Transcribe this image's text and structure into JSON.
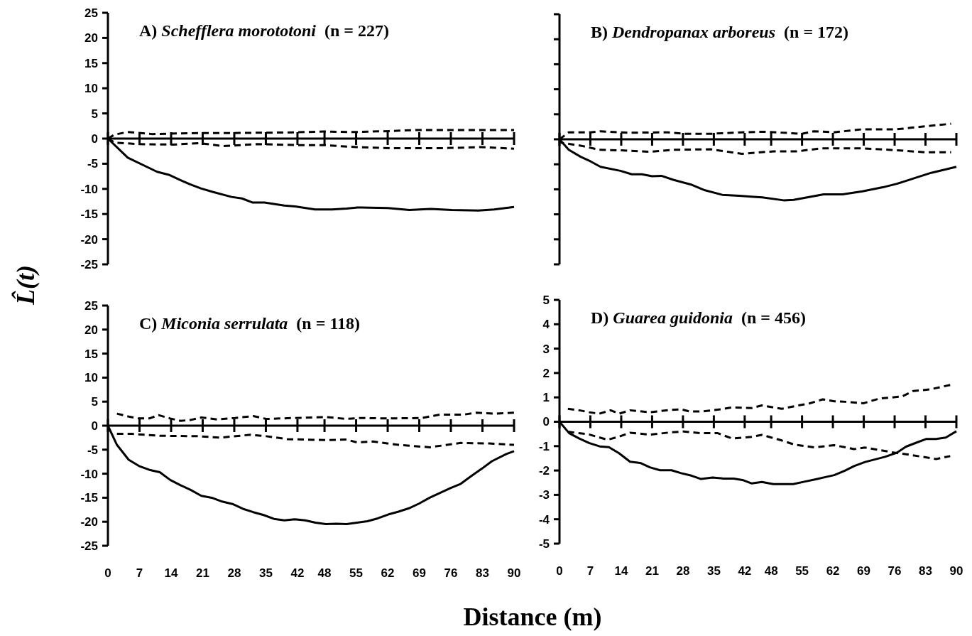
{
  "chart_data": [
    {
      "type": "line",
      "title": "A) Schefflera morototoni (n = 227)",
      "ylabel": "L̂(t)",
      "xlim": [
        0,
        90
      ],
      "ylim": [
        -25,
        25
      ],
      "yticks": [
        -25,
        -20,
        -15,
        -10,
        -5,
        0,
        5,
        10,
        15,
        20,
        25
      ],
      "xticks": [
        0,
        7,
        14,
        21,
        28,
        35,
        42,
        48,
        55,
        62,
        69,
        76,
        83,
        90
      ],
      "tick_labels": "y",
      "series": [
        {
          "type": "line",
          "line_style": "solid",
          "color": "#000000",
          "x": [
            0,
            4.4,
            10.9,
            13.5,
            16.2,
            18.2,
            20.6,
            23.2,
            27.4,
            29.7,
            32,
            34.7,
            39.1,
            41.5,
            45.9,
            49.7,
            52.9,
            55.3,
            62,
            66.8,
            71.5,
            76.2,
            82.1,
            85.6,
            90
          ],
          "values": [
            0,
            -3.8,
            -6.6,
            -7.2,
            -8.3,
            -9.1,
            -9.9,
            -10.6,
            -11.6,
            -11.9,
            -12.7,
            -12.7,
            -13.3,
            -13.5,
            -14.1,
            -14.1,
            -13.9,
            -13.7,
            -13.8,
            -14.2,
            -14,
            -14.2,
            -14.3,
            -14.1,
            -13.6
          ]
        },
        {
          "type": "line",
          "line_style": "dashed",
          "color": "#000000",
          "x": [
            0,
            1.5,
            4.4,
            9.7,
            20,
            27,
            39,
            48,
            54.4,
            62.6,
            68.5,
            80,
            90
          ],
          "values": [
            0,
            0.8,
            1.3,
            0.9,
            1.1,
            1.1,
            1.2,
            1.4,
            1.3,
            1.5,
            1.7,
            1.7,
            1.7
          ]
        },
        {
          "type": "line",
          "line_style": "dashed",
          "color": "#000000",
          "x": [
            0,
            1.5,
            6.8,
            14.4,
            20.3,
            25.6,
            33,
            42,
            48,
            55,
            62.6,
            74.4,
            82.6,
            90
          ],
          "values": [
            0,
            -0.8,
            -1.1,
            -1.2,
            -0.9,
            -1.5,
            -1.1,
            -1.3,
            -1.3,
            -1.7,
            -1.9,
            -1.9,
            -1.7,
            -2
          ]
        }
      ]
    },
    {
      "type": "line",
      "title": "B) Dendropanax arboreus (n = 172)",
      "xlim": [
        0,
        90
      ],
      "ylim": [
        -25,
        25
      ],
      "yticks": [
        -25,
        -20,
        -15,
        -10,
        -5,
        0,
        5,
        10,
        15,
        20,
        25
      ],
      "xticks": [
        0,
        7,
        14,
        21,
        28,
        35,
        42,
        48,
        55,
        62,
        69,
        76,
        83,
        90
      ],
      "tick_labels": false,
      "series": [
        {
          "type": "line",
          "line_style": "solid",
          "color": "#000000",
          "x": [
            0,
            2.1,
            4.8,
            7,
            9.3,
            13.8,
            16.4,
            18.7,
            21,
            23.1,
            25.8,
            30,
            33,
            36.9,
            40.8,
            44,
            46,
            50.8,
            53.1,
            59.9,
            64.2,
            68.7,
            73.3,
            76.5,
            80.4,
            84.3,
            90
          ],
          "values": [
            0,
            -2.1,
            -3.5,
            -4.4,
            -5.5,
            -6.3,
            -7,
            -7,
            -7.4,
            -7.3,
            -8.1,
            -9.1,
            -10.2,
            -11.1,
            -11.3,
            -11.5,
            -11.6,
            -12.2,
            -12.1,
            -11,
            -11,
            -10.4,
            -9.6,
            -8.9,
            -7.8,
            -6.7,
            -5.5
          ]
        },
        {
          "type": "line",
          "line_style": "dashed",
          "color": "#000000",
          "x": [
            0,
            2.1,
            7,
            9.3,
            16,
            24.5,
            28.4,
            34.3,
            41.4,
            46.6,
            55,
            57.7,
            62.2,
            68.7,
            76.5,
            83,
            88.8
          ],
          "values": [
            0,
            1.4,
            1.4,
            1.6,
            1.3,
            1.4,
            1.1,
            1.1,
            1.4,
            1.5,
            1.1,
            1.6,
            1.4,
            2,
            2,
            2.6,
            3.1
          ]
        },
        {
          "type": "line",
          "line_style": "dashed",
          "color": "#000000",
          "x": [
            0,
            0.5,
            5,
            9,
            13.5,
            20.6,
            25.8,
            34.3,
            41.4,
            48.6,
            53.8,
            59.6,
            68.7,
            76.5,
            83,
            88.8
          ],
          "values": [
            0,
            -0.7,
            -1.3,
            -2.1,
            -2.2,
            -2.5,
            -2.1,
            -2,
            -2.9,
            -2.4,
            -2.4,
            -1.8,
            -1.8,
            -2.2,
            -2.6,
            -2.6
          ]
        }
      ]
    },
    {
      "type": "line",
      "title": "C) Miconia serrulata (n = 118)",
      "xlabel": "Distance (m)",
      "xlim": [
        0,
        90
      ],
      "ylim": [
        -25,
        25
      ],
      "yticks": [
        -25,
        -20,
        -15,
        -10,
        -5,
        0,
        5,
        10,
        15,
        20,
        25
      ],
      "xticks": [
        0,
        7,
        14,
        21,
        28,
        35,
        42,
        48,
        55,
        62,
        69,
        76,
        83,
        90
      ],
      "series": [
        {
          "type": "line",
          "line_style": "solid",
          "color": "#000000",
          "x": [
            0,
            2,
            4.6,
            6.9,
            9.2,
            11.5,
            13.8,
            16.1,
            18.4,
            20.7,
            23,
            25.3,
            27.6,
            29.9,
            32.2,
            34.5,
            36.8,
            39.1,
            41.4,
            43.7,
            46,
            48.3,
            50.6,
            52.9,
            55.2,
            57.5,
            59.8,
            62.1,
            64.4,
            66.7,
            69,
            71.3,
            73.6,
            75.9,
            78.2,
            80.5,
            82.8,
            85.1,
            88.3,
            90
          ],
          "values": [
            0,
            -4,
            -7.1,
            -8.4,
            -9.2,
            -9.7,
            -11.3,
            -12.4,
            -13.4,
            -14.6,
            -15,
            -15.8,
            -16.3,
            -17.3,
            -18,
            -18.6,
            -19.4,
            -19.7,
            -19.5,
            -19.7,
            -20.2,
            -20.5,
            -20.4,
            -20.5,
            -20.2,
            -19.9,
            -19.3,
            -18.5,
            -17.9,
            -17.2,
            -16.2,
            -15,
            -14,
            -13,
            -12.1,
            -10.5,
            -9,
            -7.4,
            -5.9,
            -5.3
          ]
        },
        {
          "type": "line",
          "line_style": "dashed",
          "color": "#000000",
          "x": [
            2,
            4.6,
            6.9,
            9.2,
            11.2,
            13.8,
            16.1,
            18.4,
            20.7,
            24.2,
            28.2,
            32.2,
            35.1,
            41.4,
            48.3,
            52.9,
            55.8,
            62.1,
            69.6,
            73.6,
            78.8,
            81.7,
            85.7,
            90
          ],
          "values": [
            2.5,
            1.9,
            1.5,
            1.5,
            2.2,
            1.5,
            1,
            1.2,
            1.7,
            1.3,
            1.6,
            2,
            1.4,
            1.6,
            1.8,
            1.4,
            1.6,
            1.5,
            1.6,
            2.3,
            2.3,
            2.7,
            2.5,
            2.7
          ]
        },
        {
          "type": "line",
          "line_style": "dashed",
          "color": "#000000",
          "x": [
            2,
            5.2,
            11.5,
            20.1,
            24.7,
            31.6,
            35.1,
            39.7,
            48.3,
            52.9,
            55.2,
            58.7,
            64.4,
            71.3,
            78.2,
            84.5,
            90
          ],
          "values": [
            -1.7,
            -1.7,
            -2.1,
            -2.2,
            -2.5,
            -1.9,
            -2.2,
            -2.8,
            -3,
            -2.9,
            -3.5,
            -3.3,
            -4,
            -4.5,
            -3.6,
            -3.7,
            -4
          ]
        }
      ]
    },
    {
      "type": "line",
      "title": "D) Guarea guidonia (n = 456)",
      "xlim": [
        0,
        90
      ],
      "ylim": [
        -5,
        5
      ],
      "yticks": [
        -5,
        -4,
        -3,
        -2,
        -1,
        0,
        1,
        2,
        3,
        4,
        5
      ],
      "xticks": [
        0,
        7,
        14,
        21,
        28,
        35,
        42,
        48,
        55,
        62,
        69,
        76,
        83,
        90
      ],
      "series": [
        {
          "type": "line",
          "line_style": "solid",
          "color": "#000000",
          "x": [
            0,
            2.2,
            4.5,
            6.7,
            9.1,
            11.2,
            13.5,
            16,
            18.3,
            20.5,
            22.8,
            25.4,
            27.6,
            29.9,
            32.1,
            34.7,
            37.2,
            39.5,
            41.7,
            43.6,
            45.9,
            48.5,
            53,
            55.5,
            58.1,
            60.3,
            62.3,
            64.8,
            66.8,
            69.3,
            73.8,
            76.4,
            78.6,
            80.9,
            83.1,
            85.4,
            87.6,
            90
          ],
          "values": [
            0,
            -0.47,
            -0.69,
            -0.87,
            -1.01,
            -1.04,
            -1.29,
            -1.64,
            -1.69,
            -1.87,
            -1.99,
            -1.99,
            -2.11,
            -2.21,
            -2.35,
            -2.29,
            -2.33,
            -2.33,
            -2.4,
            -2.53,
            -2.47,
            -2.56,
            -2.56,
            -2.46,
            -2.36,
            -2.27,
            -2.19,
            -2,
            -1.82,
            -1.65,
            -1.44,
            -1.28,
            -1.02,
            -0.86,
            -0.71,
            -0.71,
            -0.65,
            -0.39
          ]
        },
        {
          "type": "line",
          "line_style": "dashed",
          "color": "#000000",
          "x": [
            1.9,
            4.5,
            6.7,
            9,
            11.6,
            13.5,
            16,
            20.5,
            25,
            27.6,
            29.5,
            32.1,
            36.6,
            39.2,
            43.6,
            45.9,
            50.4,
            53.9,
            56.5,
            59.7,
            62.3,
            64.8,
            69,
            72.5,
            77.7,
            80.2,
            84.1,
            88.6
          ],
          "values": [
            0.53,
            0.47,
            0.39,
            0.33,
            0.47,
            0.33,
            0.47,
            0.39,
            0.48,
            0.51,
            0.42,
            0.42,
            0.51,
            0.59,
            0.56,
            0.67,
            0.53,
            0.66,
            0.74,
            0.92,
            0.84,
            0.82,
            0.76,
            0.95,
            1.04,
            1.26,
            1.33,
            1.51
          ]
        },
        {
          "type": "line",
          "line_style": "dashed",
          "color": "#000000",
          "x": [
            1.9,
            6.7,
            10.9,
            13.5,
            16,
            20.5,
            25,
            28.2,
            32.1,
            35.9,
            39.2,
            43.6,
            45.9,
            50.1,
            53.3,
            57.8,
            62.3,
            66.8,
            69.3,
            75.7,
            78.9,
            85.4,
            88.6
          ],
          "values": [
            -0.41,
            -0.52,
            -0.74,
            -0.61,
            -0.45,
            -0.53,
            -0.44,
            -0.4,
            -0.47,
            -0.47,
            -0.69,
            -0.62,
            -0.54,
            -0.75,
            -0.94,
            -1.05,
            -0.96,
            -1.12,
            -1.06,
            -1.26,
            -1.34,
            -1.53,
            -1.41
          ]
        }
      ]
    }
  ]
}
